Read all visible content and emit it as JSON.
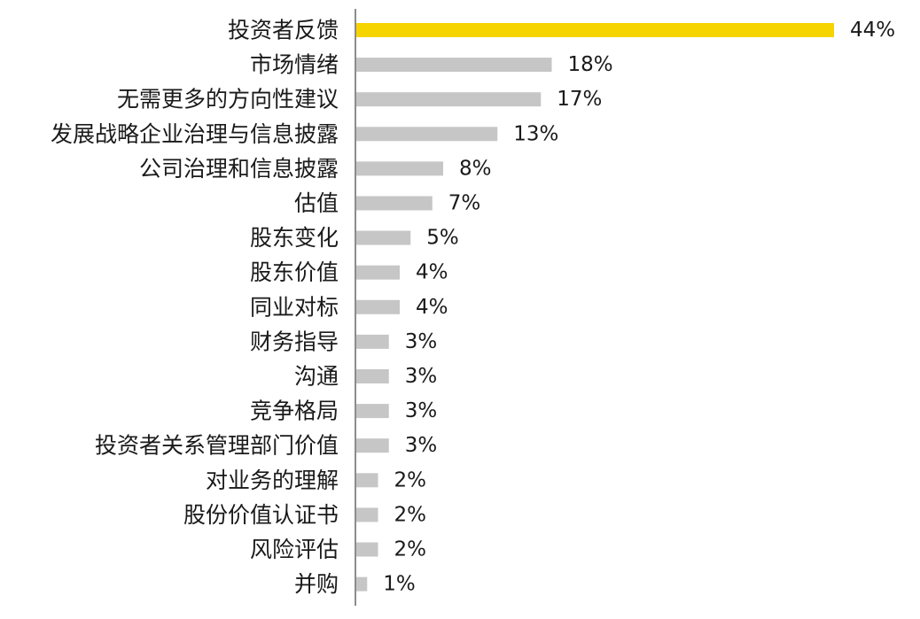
{
  "colors": {
    "highlight": "#F5D400",
    "bar": "#C6C6C6",
    "axis": "#8C8C8C",
    "text": "#1A1A1A"
  },
  "chart_data": {
    "type": "bar",
    "orientation": "horizontal",
    "categories": [
      "投资者反馈",
      "市场情绪",
      "无需更多的方向性建议",
      "发展战略企业治理与信息披露",
      "公司治理和信息披露",
      "估值",
      "股东变化",
      "股东价值",
      "同业对标",
      "财务指导",
      "沟通",
      "竞争格局",
      "投资者关系管理部门价值",
      "对业务的理解",
      "股份价值认证书",
      "风险评估",
      "并购"
    ],
    "values": [
      44,
      18,
      17,
      13,
      8,
      7,
      5,
      4,
      4,
      3,
      3,
      3,
      3,
      2,
      2,
      2,
      1
    ],
    "value_labels": [
      "44%",
      "18%",
      "17%",
      "13%",
      "8%",
      "7%",
      "5%",
      "4%",
      "4%",
      "3%",
      "3%",
      "3%",
      "3%",
      "2%",
      "2%",
      "2%",
      "1%"
    ],
    "highlight_index": 0,
    "title": "",
    "xlabel": "",
    "ylabel": "",
    "xlim": [
      0,
      44
    ],
    "grid": false,
    "legend": "none"
  }
}
